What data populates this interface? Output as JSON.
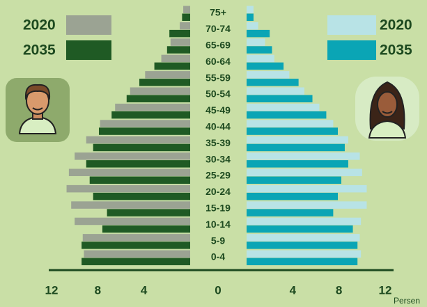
{
  "chart_data": {
    "type": "pyramid",
    "categories": [
      "75+",
      "70-74",
      "65-69",
      "60-64",
      "55-59",
      "50-54",
      "45-49",
      "40-44",
      "35-39",
      "30-34",
      "25-29",
      "20-24",
      "15-19",
      "10-14",
      "5-9",
      "0-4"
    ],
    "series": [
      {
        "name": "2020",
        "side": "left",
        "color": "#9ba393",
        "values": [
          0.6,
          0.9,
          1.7,
          2.5,
          3.9,
          5.2,
          6.5,
          7.8,
          9,
          10,
          10.5,
          10.7,
          10.3,
          10,
          9.3,
          9.2
        ]
      },
      {
        "name": "2035",
        "side": "left",
        "color": "#1f5a24",
        "values": [
          0.7,
          1.8,
          2,
          3.1,
          4.4,
          5.5,
          6.8,
          7.9,
          8.4,
          9,
          8.7,
          8.4,
          7.2,
          7.6,
          9.4,
          9.4
        ]
      },
      {
        "name": "2020",
        "side": "right",
        "color": "#b8e3e6",
        "values": [
          0.6,
          1,
          1.6,
          2.4,
          3.7,
          5,
          6.3,
          7.5,
          8.8,
          9.8,
          10,
          10.4,
          10.4,
          9.9,
          9.8,
          9.9
        ]
      },
      {
        "name": "2035",
        "side": "right",
        "color": "#0aa5b5",
        "values": [
          0.6,
          2,
          2.2,
          3.2,
          4.5,
          5.7,
          6.9,
          7.9,
          8.5,
          8.8,
          8.2,
          7.9,
          7.5,
          9.2,
          9.6,
          9.6
        ]
      }
    ],
    "xlim": [
      0,
      12
    ],
    "xticks": [
      {
        "value": -12,
        "label": "12"
      },
      {
        "value": -8,
        "label": "8"
      },
      {
        "value": -4,
        "label": "4"
      },
      0,
      4,
      8,
      12
    ],
    "x_label": "Persen"
  }
}
